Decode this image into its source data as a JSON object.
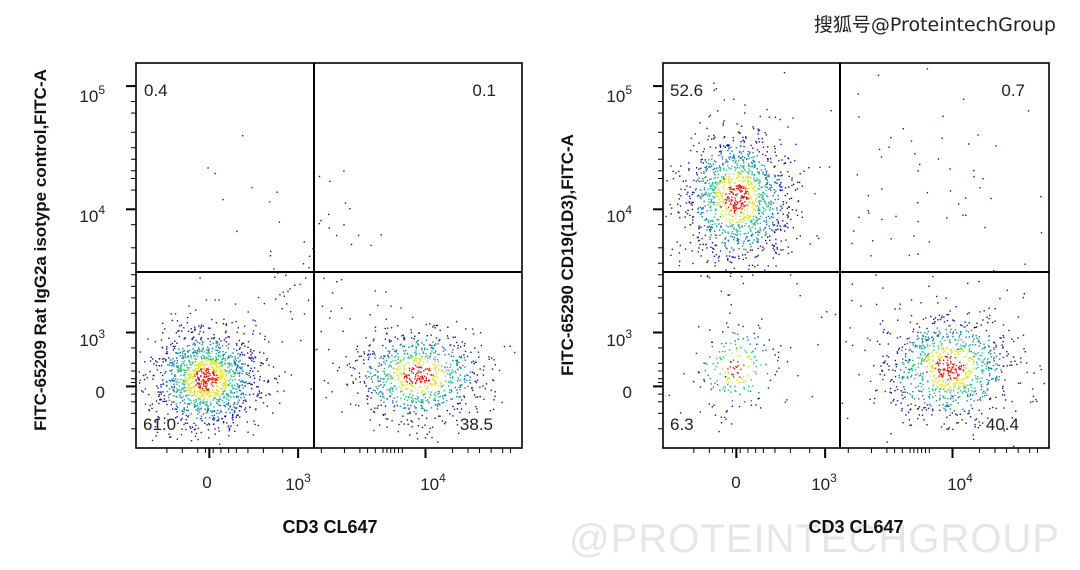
{
  "watermark": {
    "top": "搜狐号@ProteintechGroup",
    "bottom": "@PROTEINTECHGROUP"
  },
  "chart_data": [
    {
      "type": "scatter",
      "subtype": "flow-cytometry-density-dot-plot",
      "xlabel": "CD3 CL647",
      "ylabel": "FITC-65209 Rat IgG2a isotype control,FITC-A",
      "x_scale": "biexponential",
      "y_scale": "biexponential",
      "x_ticks": [
        {
          "base": "0",
          "exp": ""
        },
        {
          "base": "10",
          "exp": "3"
        },
        {
          "base": "10",
          "exp": "4"
        }
      ],
      "y_ticks": [
        {
          "base": "0",
          "exp": ""
        },
        {
          "base": "10",
          "exp": "3"
        },
        {
          "base": "10",
          "exp": "4"
        },
        {
          "base": "10",
          "exp": "5"
        }
      ],
      "quadrant_percent": {
        "upper_left": "0.4",
        "upper_right": "0.1",
        "lower_left": "61.0",
        "lower_right": "38.5"
      },
      "populations": [
        {
          "quadrant": "lower_left",
          "center_x": "0",
          "center_y": "0",
          "percent": 61.0
        },
        {
          "quadrant": "lower_right",
          "center_x": "~7e3",
          "center_y": "0",
          "percent": 38.5
        }
      ],
      "grid": false,
      "legend": "none"
    },
    {
      "type": "scatter",
      "subtype": "flow-cytometry-density-dot-plot",
      "xlabel": "CD3 CL647",
      "ylabel": "FITC-65290 CD19(1D3),FITC-A",
      "x_scale": "biexponential",
      "y_scale": "biexponential",
      "x_ticks": [
        {
          "base": "0",
          "exp": ""
        },
        {
          "base": "10",
          "exp": "3"
        },
        {
          "base": "10",
          "exp": "4"
        }
      ],
      "y_ticks": [
        {
          "base": "0",
          "exp": ""
        },
        {
          "base": "10",
          "exp": "3"
        },
        {
          "base": "10",
          "exp": "4"
        },
        {
          "base": "10",
          "exp": "5"
        }
      ],
      "quadrant_percent": {
        "upper_left": "52.6",
        "upper_right": "0.7",
        "lower_left": "6.3",
        "lower_right": "40.4"
      },
      "populations": [
        {
          "quadrant": "upper_left",
          "center_x": "0",
          "center_y": "~1.2e4",
          "percent": 52.6
        },
        {
          "quadrant": "lower_left",
          "center_x": "0",
          "center_y": "0",
          "percent": 6.3
        },
        {
          "quadrant": "lower_right",
          "center_x": "~7e3",
          "center_y": "0",
          "percent": 40.4
        }
      ],
      "grid": false,
      "legend": "none"
    }
  ],
  "colors": {
    "axis": "#000000",
    "density_low": "#1a0fa8",
    "density_mid_low": "#0a7fb5",
    "density_mid": "#22c28c",
    "density_mid_high": "#e5e51a",
    "density_high": "#e41a12"
  }
}
